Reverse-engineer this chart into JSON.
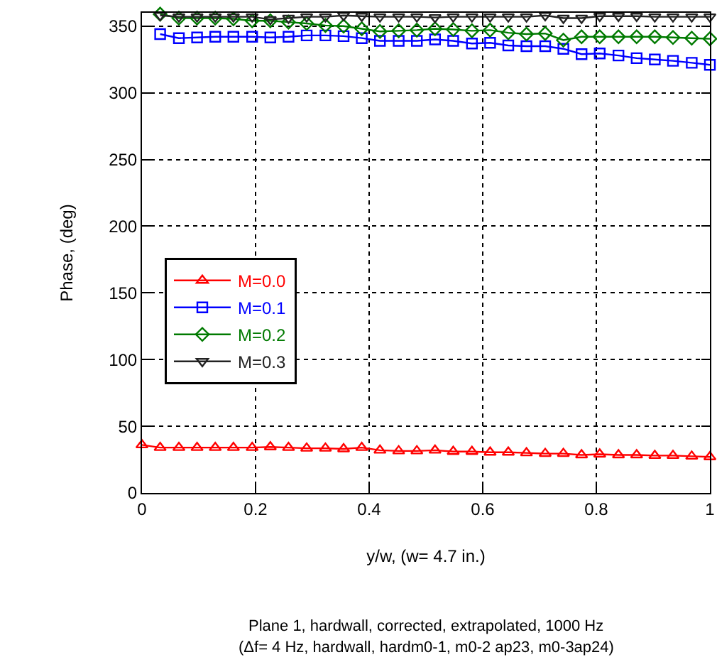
{
  "chart_data": {
    "type": "line",
    "xlabel": "y/w, (w= 4.7 in.)",
    "ylabel": "Phase, (deg)",
    "annotations": [
      "Plane 1, hardwall, corrected, extrapolated, 1000 Hz",
      "(Δf= 4 Hz, hardwall, hardm0-1, m0-2 ap23, m0-3ap24)"
    ],
    "xlim": [
      0,
      1
    ],
    "xticks": [
      0,
      0.2,
      0.4,
      0.6,
      0.8,
      1
    ],
    "ylim": [
      0,
      360
    ],
    "yticks": [
      0,
      50,
      100,
      150,
      200,
      250,
      300,
      350
    ],
    "grid": true,
    "legend": "left",
    "line_style": "solid",
    "series": [
      {
        "name": "M=0.0",
        "color": "#ff0000",
        "marker": "triangle",
        "x": [
          0,
          0.032,
          0.065,
          0.097,
          0.129,
          0.161,
          0.194,
          0.226,
          0.258,
          0.29,
          0.323,
          0.355,
          0.387,
          0.419,
          0.452,
          0.484,
          0.516,
          0.548,
          0.581,
          0.613,
          0.645,
          0.677,
          0.71,
          0.742,
          0.774,
          0.806,
          0.839,
          0.871,
          0.903,
          0.935,
          0.968,
          1
        ],
        "values": [
          36,
          34,
          34,
          34,
          34,
          34,
          34,
          34.5,
          34,
          33.5,
          33.5,
          33,
          34,
          32,
          31.5,
          31.5,
          32,
          31,
          31,
          30.5,
          30.5,
          30,
          29.5,
          29.5,
          28.5,
          29,
          28.5,
          28.5,
          28,
          28,
          27.5,
          27
        ]
      },
      {
        "name": "M=0.1",
        "color": "#0000ff",
        "marker": "square",
        "x": [
          0.032,
          0.065,
          0.097,
          0.129,
          0.161,
          0.194,
          0.226,
          0.258,
          0.29,
          0.323,
          0.355,
          0.387,
          0.419,
          0.452,
          0.484,
          0.516,
          0.548,
          0.581,
          0.613,
          0.645,
          0.677,
          0.71,
          0.742,
          0.774,
          0.806,
          0.839,
          0.871,
          0.903,
          0.935,
          0.968,
          1
        ],
        "values": [
          344,
          341,
          341.5,
          342,
          342,
          342,
          341.5,
          342,
          343,
          343,
          342.5,
          341,
          339,
          339,
          339,
          340,
          339,
          337,
          337.5,
          335.5,
          335,
          335,
          333,
          329,
          329.5,
          328,
          326,
          325,
          324,
          322.5,
          321
        ]
      },
      {
        "name": "M=0.2",
        "color": "#007a00",
        "marker": "diamond",
        "x": [
          0.032,
          0.065,
          0.097,
          0.129,
          0.161,
          0.194,
          0.226,
          0.258,
          0.29,
          0.323,
          0.355,
          0.387,
          0.419,
          0.452,
          0.484,
          0.516,
          0.548,
          0.581,
          0.613,
          0.645,
          0.677,
          0.71,
          0.742,
          0.774,
          0.806,
          0.839,
          0.871,
          0.903,
          0.935,
          0.968,
          1
        ],
        "values": [
          359,
          356,
          356,
          356,
          355.5,
          354,
          354,
          353,
          352,
          350.5,
          350,
          348,
          346,
          346.5,
          347,
          348,
          347.5,
          346.5,
          347,
          345,
          344,
          344.5,
          339.5,
          342,
          342,
          342,
          342,
          342,
          341.5,
          341,
          340.5
        ]
      },
      {
        "name": "M=0.3",
        "color": "#222222",
        "marker": "triangle-down",
        "x": [
          0.032,
          0.065,
          0.097,
          0.129,
          0.161,
          0.194,
          0.226,
          0.258,
          0.29,
          0.323,
          0.355,
          0.387,
          0.419,
          0.452,
          0.484,
          0.516,
          0.548,
          0.581,
          0.613,
          0.645,
          0.677,
          0.71,
          0.742,
          0.774,
          0.806,
          0.839,
          0.871,
          0.903,
          0.935,
          0.968,
          1
        ],
        "values": [
          358,
          357,
          357,
          357,
          357,
          357,
          355,
          356,
          357,
          357,
          358,
          357.5,
          357,
          357,
          357,
          356.5,
          357,
          357,
          357,
          357,
          357,
          358,
          356,
          356,
          357.5,
          357.5,
          357.5,
          357,
          357,
          357,
          357
        ]
      }
    ]
  }
}
